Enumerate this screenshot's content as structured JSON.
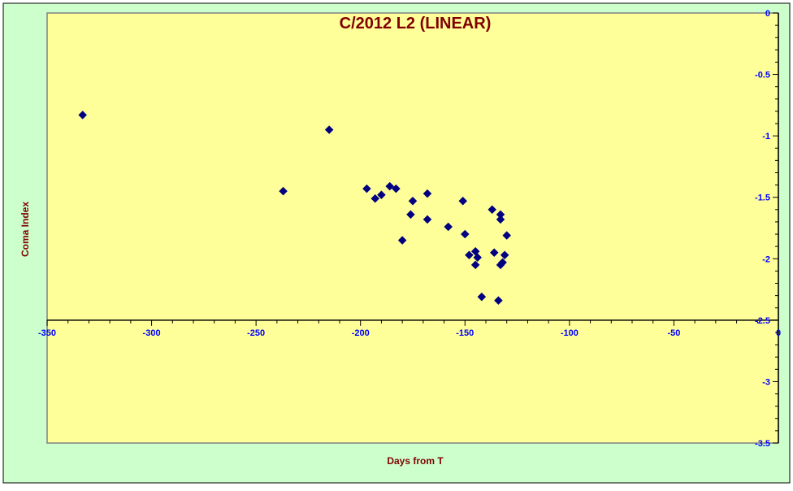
{
  "chart_data": {
    "type": "scatter",
    "title": "C/2012 L2 (LINEAR)",
    "xlabel": "Days from T",
    "ylabel": "Coma Index",
    "xlim": [
      -350,
      0
    ],
    "ylim": [
      -3.5,
      0
    ],
    "x_ticks": [
      -350,
      -300,
      -250,
      -200,
      -150,
      -100,
      -50,
      0
    ],
    "y_ticks": [
      0,
      -0.5,
      -1,
      -1.5,
      -2,
      -2.5,
      -3,
      -3.5
    ],
    "grid": false,
    "legend": "none",
    "series": [
      {
        "marker": "diamond",
        "points": [
          {
            "x": -333,
            "y": -0.83
          },
          {
            "x": -237,
            "y": -1.45
          },
          {
            "x": -215,
            "y": -0.95
          },
          {
            "x": -197,
            "y": -1.43
          },
          {
            "x": -193,
            "y": -1.51
          },
          {
            "x": -190,
            "y": -1.48
          },
          {
            "x": -186,
            "y": -1.41
          },
          {
            "x": -183,
            "y": -1.43
          },
          {
            "x": -180,
            "y": -1.85
          },
          {
            "x": -176,
            "y": -1.64
          },
          {
            "x": -175,
            "y": -1.53
          },
          {
            "x": -168,
            "y": -1.47
          },
          {
            "x": -168,
            "y": -1.68
          },
          {
            "x": -158,
            "y": -1.74
          },
          {
            "x": -151,
            "y": -1.53
          },
          {
            "x": -150,
            "y": -1.8
          },
          {
            "x": -148,
            "y": -1.97
          },
          {
            "x": -145,
            "y": -1.94
          },
          {
            "x": -145,
            "y": -2.05
          },
          {
            "x": -144,
            "y": -1.99
          },
          {
            "x": -142,
            "y": -2.31
          },
          {
            "x": -137,
            "y": -1.6
          },
          {
            "x": -136,
            "y": -1.95
          },
          {
            "x": -134,
            "y": -2.34
          },
          {
            "x": -133,
            "y": -1.64
          },
          {
            "x": -133,
            "y": -1.68
          },
          {
            "x": -133,
            "y": -2.05
          },
          {
            "x": -132,
            "y": -2.03
          },
          {
            "x": -131,
            "y": -1.97
          },
          {
            "x": -130,
            "y": -1.81
          }
        ]
      }
    ]
  },
  "colors": {
    "outer_background": "#ccffcc",
    "plot_background": "#ffff99",
    "title": "#800000",
    "axis_title": "#800000",
    "tick_label": "#0000ff",
    "axis_line": "#000000",
    "plot_border": "#808080",
    "marker": "#000080"
  }
}
